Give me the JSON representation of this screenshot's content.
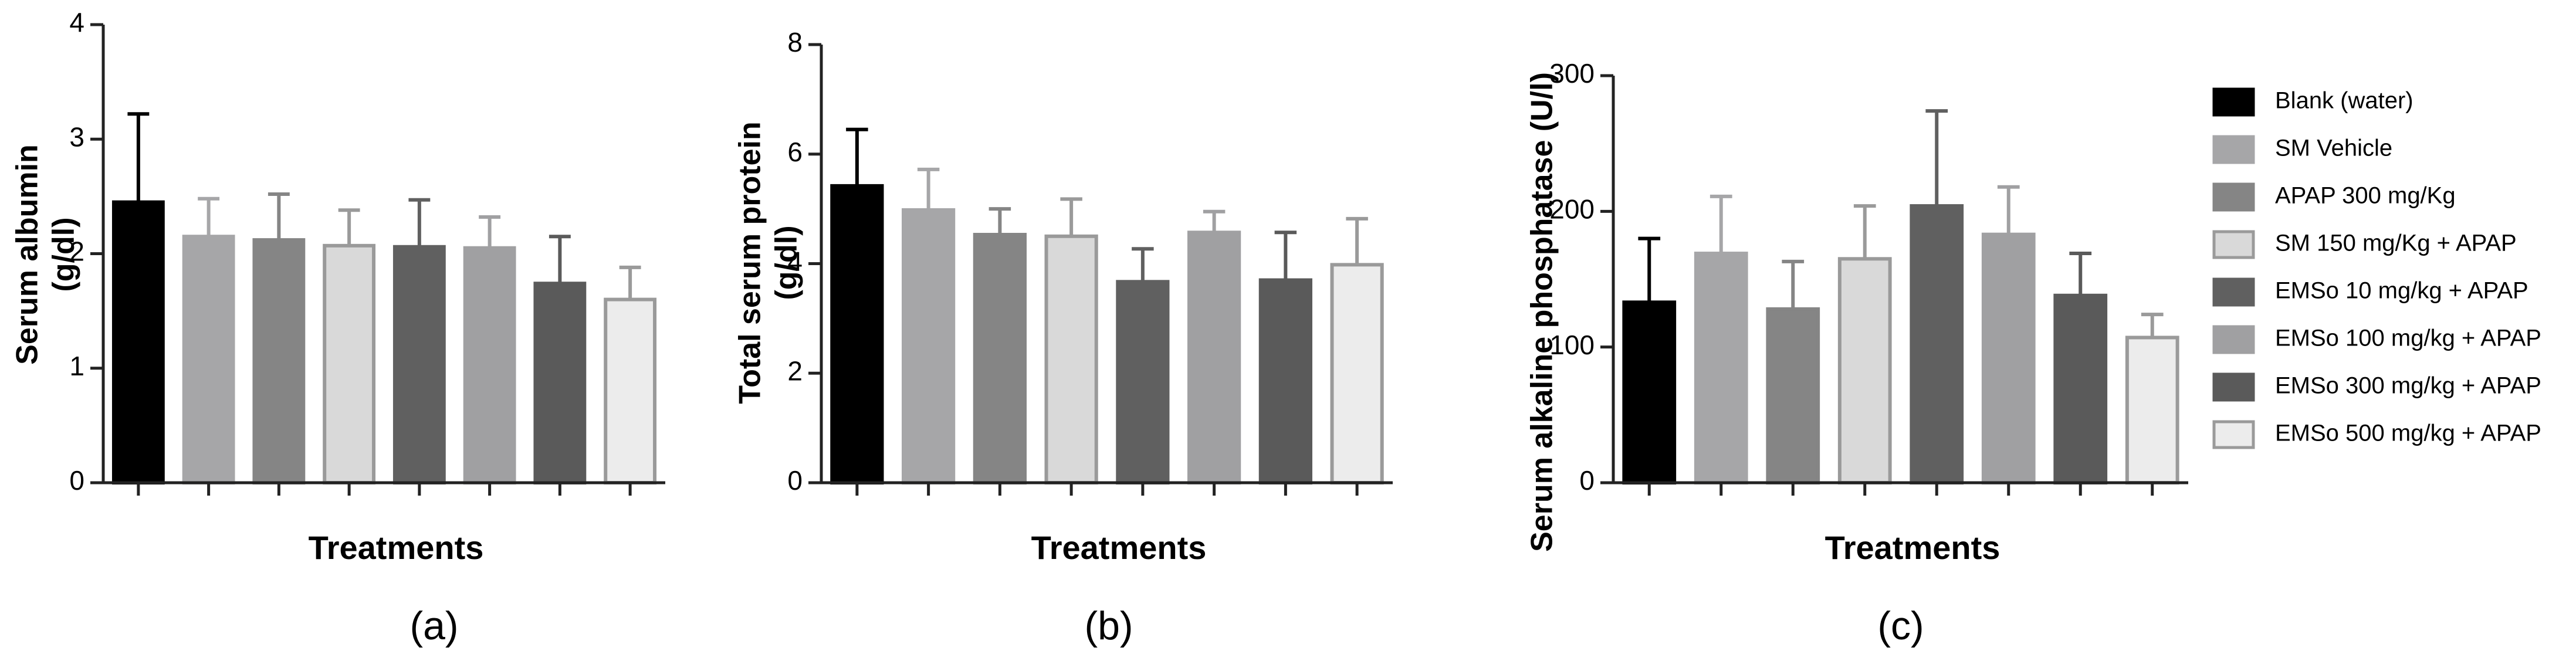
{
  "chart_data": [
    {
      "type": "bar",
      "ylabel": [
        "Serum albumin",
        "(g/dl)"
      ],
      "xlabel": "Treatments",
      "panel_label": "(a)",
      "values": [
        2.45,
        2.15,
        2.12,
        2.07,
        2.06,
        2.05,
        1.74,
        1.6
      ],
      "errors": [
        0.77,
        0.33,
        0.4,
        0.31,
        0.41,
        0.27,
        0.41,
        0.28
      ],
      "ylim": [
        0,
        4
      ],
      "yticks": [
        0,
        1,
        2,
        3,
        4
      ]
    },
    {
      "type": "bar",
      "ylabel": [
        "Total serum protein",
        "(g/dl)"
      ],
      "xlabel": "Treatments",
      "panel_label": "(b)",
      "values": [
        5.42,
        4.98,
        4.53,
        4.5,
        3.67,
        4.57,
        3.7,
        3.98
      ],
      "errors": [
        1.03,
        0.74,
        0.47,
        0.68,
        0.6,
        0.38,
        0.87,
        0.84
      ],
      "ylim": [
        0,
        8
      ],
      "yticks": [
        0,
        2,
        4,
        6,
        8
      ]
    },
    {
      "type": "bar",
      "ylabel": "Serum alkaline phosphatase (U/l)",
      "xlabel": "Treatments",
      "panel_label": "(c)",
      "values": [
        133,
        169,
        128,
        165,
        204,
        183,
        138,
        107
      ],
      "errors": [
        47,
        42,
        35,
        39,
        70,
        35,
        31,
        17
      ],
      "ylim": [
        0,
        300
      ],
      "yticks": [
        0,
        100,
        200,
        300
      ]
    }
  ],
  "legend": {
    "labels": [
      "Blank (water)",
      "SM Vehicle",
      "APAP 300 mg/Kg",
      "SM 150 mg/Kg + APAP",
      "EMSo 10 mg/kg + APAP",
      "EMSo 100 mg/kg + APAP",
      "EMSo 300 mg/kg + APAP",
      "EMSo 500 mg/kg + APAP"
    ],
    "colors": [
      "#000000",
      "#a6a6a8",
      "#858585",
      "#d9d9d9",
      "#606060",
      "#a0a0a2",
      "#5a5a5a",
      "#ececec"
    ]
  }
}
